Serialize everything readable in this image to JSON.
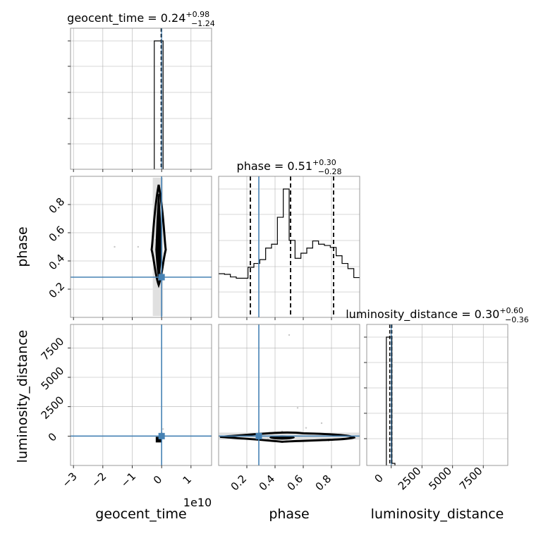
{
  "chart_data": {
    "type": "corner",
    "parameters": [
      "geocent_time",
      "phase",
      "luminosity_distance"
    ],
    "colors": {
      "truth": "#4682b4",
      "hist": "#000000",
      "grid": "#b0b0b0",
      "points": "#c8c8c8"
    },
    "panels": [
      {
        "id": "hist-geocent_time",
        "row": 0,
        "col": 0,
        "type": "histogram",
        "title_param": "geocent_time",
        "title_median": "0.24",
        "title_plus": "+0.98",
        "title_minus": "−1.24",
        "xlim": [
          -3.1,
          1.7
        ],
        "bins": [
          [
            -0.25,
            0.0,
            1.0
          ],
          [
            0.0,
            0.05,
            1.0
          ]
        ],
        "quantiles": [
          -0.02,
          0.0,
          0.005
        ],
        "truth": 0.0
      },
      {
        "id": "hist-phase",
        "row": 1,
        "col": 1,
        "type": "histogram",
        "title_param": "phase",
        "title_median": "0.51",
        "title_plus": "+0.30",
        "title_minus": "−0.28",
        "xlim": [
          0.0,
          1.0
        ],
        "heights": [
          0.34,
          0.335,
          0.315,
          0.305,
          0.305,
          0.39,
          0.42,
          0.45,
          0.54,
          0.57,
          0.78,
          1.0,
          0.6,
          0.46,
          0.5,
          0.54,
          0.595,
          0.57,
          0.56,
          0.545,
          0.48,
          0.42,
          0.38,
          0.31
        ],
        "quantiles": [
          0.225,
          0.51,
          0.815
        ],
        "truth": 0.285
      },
      {
        "id": "hist-luminosity_distance",
        "row": 2,
        "col": 2,
        "type": "histogram",
        "title_param": "luminosity_distance",
        "title_median": "0.30",
        "title_plus": "+0.60",
        "title_minus": "−0.36",
        "xlim": [
          -2000,
          9500
        ],
        "bins": [
          [
            -400,
            -150,
            1.0
          ],
          [
            -150,
            50,
            1.0
          ],
          [
            50,
            300,
            0.02
          ]
        ],
        "quantiles": [
          -130,
          -20,
          50
        ],
        "truth": 0
      },
      {
        "id": "scatter-geocent_time-phase",
        "row": 1,
        "col": 0,
        "type": "scatter2d",
        "xlim": [
          -3.1,
          1.7
        ],
        "ylim": [
          0.0,
          1.0
        ],
        "truth": [
          0.0,
          0.285
        ],
        "points": [
          [
            -1.6,
            0.5
          ],
          [
            -0.8,
            0.5
          ],
          [
            -0.2,
            0.55
          ],
          [
            0.1,
            0.45
          ]
        ]
      },
      {
        "id": "scatter-geocent_time-luminosity_distance",
        "row": 2,
        "col": 0,
        "type": "scatter2d",
        "xlim": [
          -3.1,
          1.7
        ],
        "ylim": [
          -2500,
          9500
        ],
        "truth": [
          0.0,
          0
        ],
        "points": [
          [
            0.0,
            300
          ],
          [
            0.05,
            600
          ],
          [
            -0.05,
            -200
          ]
        ]
      },
      {
        "id": "scatter-phase-luminosity_distance",
        "row": 2,
        "col": 1,
        "type": "scatter2d",
        "xlim": [
          0.0,
          1.0
        ],
        "ylim": [
          -2500,
          9500
        ],
        "truth": [
          0.285,
          0
        ],
        "points": [
          [
            0.5,
            8600
          ],
          [
            0.56,
            2400
          ],
          [
            0.73,
            1100
          ],
          [
            0.45,
            400
          ],
          [
            0.62,
            700
          ],
          [
            0.35,
            -200
          ],
          [
            0.78,
            -400
          ]
        ]
      }
    ],
    "tick_labels": {
      "geocent_time_x": [
        "−3",
        "−2",
        "−1",
        "0",
        "1"
      ],
      "geocent_time_offset": "1e10",
      "phase_x": [
        "0.2",
        "0.4",
        "0.6",
        "0.8"
      ],
      "phase_y": [
        "0.2",
        "0.4",
        "0.6",
        "0.8"
      ],
      "luminosity_distance_x": [
        "0",
        "2500",
        "5000",
        "7500"
      ],
      "luminosity_distance_y": [
        "0",
        "2500",
        "5000",
        "7500"
      ]
    },
    "axis_labels": {
      "x": [
        "geocent_time",
        "phase",
        "luminosity_distance"
      ],
      "y": [
        "phase",
        "luminosity_distance"
      ]
    }
  }
}
